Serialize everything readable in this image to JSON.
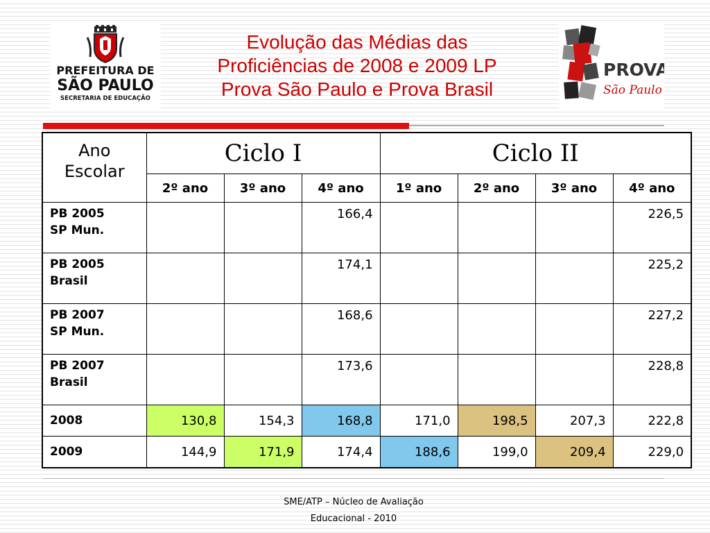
{
  "title": {
    "line1": "Evolução das Médias das",
    "line2": "Proficiências de 2008 e 2009 LP",
    "line3": "Prova São Paulo e Prova Brasil"
  },
  "logo_left": {
    "line1": "PREFEITURA DE",
    "line2": "SÃO PAULO",
    "line3": "SECRETARIA DE EDUCAÇÃO"
  },
  "logo_right": {
    "word1": "PROVA",
    "word2": "São Paulo"
  },
  "table": {
    "corner_line1": "Ano",
    "corner_line2": "Escolar",
    "cycles": [
      "Ciclo I",
      "Ciclo II"
    ],
    "years": [
      "2º ano",
      "3º ano",
      "4º ano",
      "1º ano",
      "2º ano",
      "3º ano",
      "4º ano"
    ],
    "rows": [
      {
        "label1": "PB 2005",
        "label2": "SP Mun.",
        "cells": [
          "",
          "",
          "166,4",
          "",
          "",
          "",
          "226,5"
        ]
      },
      {
        "label1": "PB 2005",
        "label2": "Brasil",
        "cells": [
          "",
          "",
          "174,1",
          "",
          "",
          "",
          "225,2"
        ]
      },
      {
        "label1": "PB 2007",
        "label2": "SP Mun.",
        "cells": [
          "",
          "",
          "168,6",
          "",
          "",
          "",
          "227,2"
        ]
      },
      {
        "label1": "PB 2007",
        "label2": "Brasil",
        "cells": [
          "",
          "",
          "173,6",
          "",
          "",
          "",
          "228,8"
        ]
      },
      {
        "label1": "2008",
        "label2": "",
        "cells": [
          "130,8",
          "154,3",
          "168,8",
          "171,0",
          "198,5",
          "207,3",
          "222,8"
        ]
      },
      {
        "label1": "2009",
        "label2": "",
        "cells": [
          "144,9",
          "171,9",
          "174,4",
          "188,6",
          "199,0",
          "209,4",
          "229,0"
        ]
      }
    ]
  },
  "colors": {
    "title": "#cc0000",
    "highlight_green": "#ccff66",
    "highlight_blue": "#80c8ec",
    "highlight_tan": "#dcc280",
    "accent_rule": "#e01010"
  },
  "footer": {
    "line1": "SME/ATP – Núcleo de Avaliação",
    "line2": "Educacional - 2010"
  }
}
